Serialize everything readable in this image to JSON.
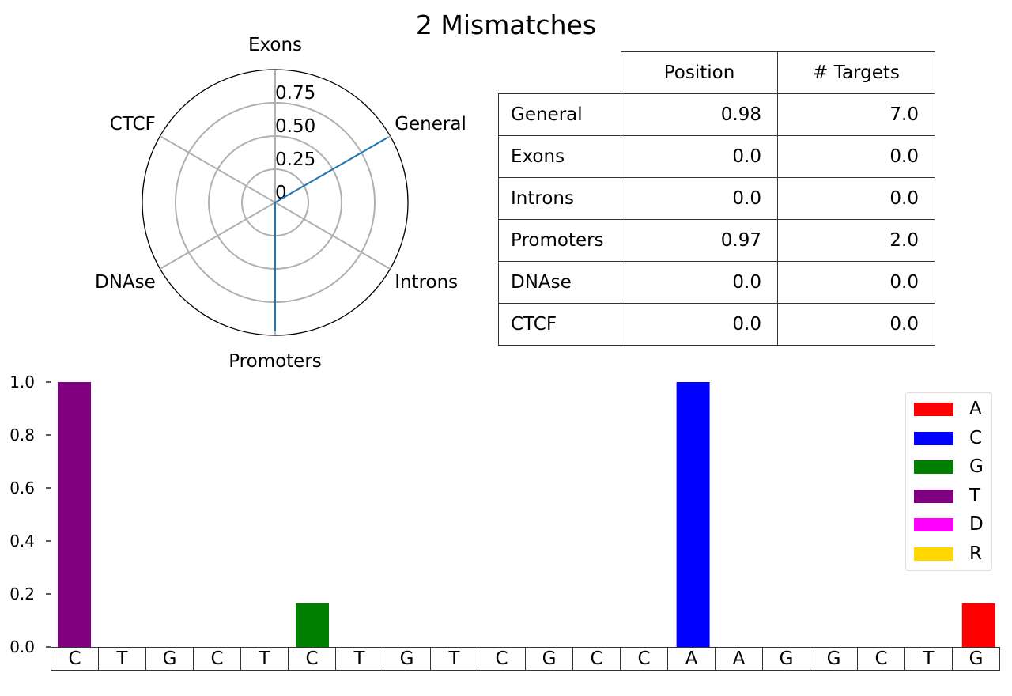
{
  "title": "2 Mismatches",
  "chart_data": [
    {
      "type": "radar",
      "axes": [
        "Exons",
        "General",
        "Introns",
        "Promoters",
        "DNAse",
        "CTCF"
      ],
      "values": [
        0.0,
        0.98,
        0.0,
        0.97,
        0.0,
        0.0
      ],
      "rlim": [
        0,
        1
      ],
      "radial_ticks": [
        "0",
        "0.25",
        "0.50",
        "0.75"
      ],
      "radial_tick_values": [
        0,
        0.25,
        0.5,
        0.75
      ],
      "line_color": "#1f77b4",
      "grid_color": "#b0b0b0"
    },
    {
      "type": "table",
      "columns": [
        "Position",
        "# Targets"
      ],
      "rows": [
        {
          "label": "General",
          "values": [
            "0.98",
            "7.0"
          ]
        },
        {
          "label": "Exons",
          "values": [
            "0.0",
            "0.0"
          ]
        },
        {
          "label": "Introns",
          "values": [
            "0.0",
            "0.0"
          ]
        },
        {
          "label": "Promoters",
          "values": [
            "0.97",
            "2.0"
          ]
        },
        {
          "label": "DNAse",
          "values": [
            "0.0",
            "0.0"
          ]
        },
        {
          "label": "CTCF",
          "values": [
            "0.0",
            "0.0"
          ]
        }
      ]
    },
    {
      "type": "bar",
      "categories": [
        "C",
        "T",
        "G",
        "C",
        "T",
        "C",
        "T",
        "G",
        "T",
        "C",
        "G",
        "C",
        "C",
        "A",
        "A",
        "G",
        "G",
        "C",
        "T",
        "G"
      ],
      "bars": [
        {
          "index": 0,
          "base": "T",
          "value": 1.0
        },
        {
          "index": 5,
          "base": "G",
          "value": 0.165
        },
        {
          "index": 13,
          "base": "C",
          "value": 1.0
        },
        {
          "index": 19,
          "base": "A",
          "value": 0.165
        }
      ],
      "ylim": [
        0,
        1.0
      ],
      "yticks": [
        "0.0",
        "0.2",
        "0.4",
        "0.6",
        "0.8",
        "1.0"
      ],
      "ytick_values": [
        0,
        0.2,
        0.4,
        0.6,
        0.8,
        1.0
      ],
      "legend": [
        {
          "name": "A",
          "color": "#ff0000"
        },
        {
          "name": "C",
          "color": "#0000ff"
        },
        {
          "name": "G",
          "color": "#008000"
        },
        {
          "name": "T",
          "color": "#800080"
        },
        {
          "name": "D",
          "color": "#ff00ff"
        },
        {
          "name": "R",
          "color": "#ffd700"
        }
      ],
      "legend_position": "top-right"
    }
  ]
}
